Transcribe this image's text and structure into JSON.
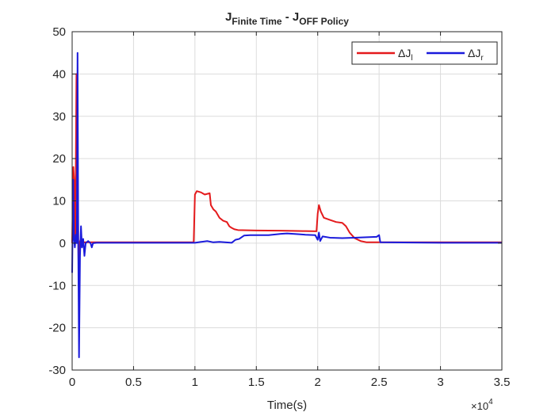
{
  "chart_data": {
    "type": "line",
    "title": {
      "main": "J",
      "sub1": "Finite Time",
      "mid": " - J",
      "sub2": "OFF Policy"
    },
    "xlabel": "Time(s)",
    "ylabel": "",
    "x_exponent": {
      "base": "×10",
      "power": "4"
    },
    "xlim": [
      0,
      35000
    ],
    "ylim": [
      -30,
      50
    ],
    "x_ticks": [
      0,
      5000,
      10000,
      15000,
      20000,
      25000,
      30000,
      35000
    ],
    "x_tick_labels": [
      "0",
      "0.5",
      "1",
      "1.5",
      "2",
      "2.5",
      "3",
      "3.5"
    ],
    "y_ticks": [
      -30,
      -20,
      -10,
      0,
      10,
      20,
      30,
      40,
      50
    ],
    "y_tick_labels": [
      "-30",
      "-20",
      "-10",
      "0",
      "10",
      "20",
      "30",
      "40",
      "50"
    ],
    "grid": true,
    "legend_position": "top-right",
    "series": [
      {
        "name": "ΔJ",
        "name_sub": "l",
        "color": "#e41a1c",
        "points": [
          [
            0,
            0
          ],
          [
            100,
            18
          ],
          [
            180,
            14
          ],
          [
            260,
            1
          ],
          [
            350,
            40
          ],
          [
            430,
            20
          ],
          [
            520,
            -5
          ],
          [
            600,
            0
          ],
          [
            700,
            1
          ],
          [
            850,
            0
          ],
          [
            1000,
            0.2
          ],
          [
            3000,
            0.2
          ],
          [
            6000,
            0.2
          ],
          [
            9900,
            0.2
          ],
          [
            10000,
            11.5
          ],
          [
            10150,
            12.3
          ],
          [
            10500,
            12
          ],
          [
            10800,
            11.5
          ],
          [
            11200,
            11.8
          ],
          [
            11300,
            9
          ],
          [
            11500,
            8
          ],
          [
            11700,
            7.5
          ],
          [
            12000,
            6
          ],
          [
            12300,
            5.3
          ],
          [
            12600,
            5
          ],
          [
            12800,
            4
          ],
          [
            13000,
            3.6
          ],
          [
            13200,
            3.3
          ],
          [
            13500,
            3.1
          ],
          [
            15000,
            3.0
          ],
          [
            17000,
            2.95
          ],
          [
            18000,
            2.9
          ],
          [
            19000,
            2.85
          ],
          [
            19900,
            2.8
          ],
          [
            20000,
            7
          ],
          [
            20100,
            9
          ],
          [
            20250,
            7.5
          ],
          [
            20500,
            6
          ],
          [
            21000,
            5.5
          ],
          [
            21500,
            5
          ],
          [
            22000,
            4.8
          ],
          [
            22300,
            4
          ],
          [
            22600,
            2.5
          ],
          [
            23000,
            1.2
          ],
          [
            23500,
            0.5
          ],
          [
            24000,
            0.2
          ],
          [
            35000,
            0.2
          ]
        ]
      },
      {
        "name": "ΔJ",
        "name_sub": "r",
        "color": "#1a1adb",
        "points": [
          [
            0,
            -7
          ],
          [
            80,
            15
          ],
          [
            150,
            1
          ],
          [
            220,
            -1
          ],
          [
            300,
            2
          ],
          [
            380,
            0
          ],
          [
            440,
            45
          ],
          [
            500,
            -2
          ],
          [
            560,
            -27
          ],
          [
            640,
            -3
          ],
          [
            720,
            4
          ],
          [
            800,
            -1
          ],
          [
            900,
            1
          ],
          [
            1000,
            -3
          ],
          [
            1100,
            0
          ],
          [
            1300,
            0.5
          ],
          [
            1500,
            0
          ],
          [
            1600,
            -1
          ],
          [
            1700,
            0
          ],
          [
            2000,
            0.1
          ],
          [
            5000,
            0.1
          ],
          [
            9000,
            0.1
          ],
          [
            10000,
            0.1
          ],
          [
            10500,
            0.3
          ],
          [
            11000,
            0.5
          ],
          [
            11500,
            0.2
          ],
          [
            12000,
            0.3
          ],
          [
            13000,
            0.1
          ],
          [
            13300,
            0.8
          ],
          [
            13600,
            1.0
          ],
          [
            14000,
            1.8
          ],
          [
            14500,
            1.9
          ],
          [
            15000,
            1.9
          ],
          [
            16000,
            1.9
          ],
          [
            17000,
            2.2
          ],
          [
            17500,
            2.3
          ],
          [
            18000,
            2.2
          ],
          [
            18500,
            2.1
          ],
          [
            19000,
            2.0
          ],
          [
            19800,
            1.9
          ],
          [
            20000,
            0.8
          ],
          [
            20100,
            2.5
          ],
          [
            20200,
            0.5
          ],
          [
            20400,
            1.6
          ],
          [
            21000,
            1.3
          ],
          [
            22000,
            1.2
          ],
          [
            23000,
            1.3
          ],
          [
            24000,
            1.4
          ],
          [
            24800,
            1.5
          ],
          [
            25000,
            1.9
          ],
          [
            25100,
            0.2
          ],
          [
            30000,
            0.1
          ],
          [
            35000,
            0.1
          ]
        ]
      }
    ]
  }
}
